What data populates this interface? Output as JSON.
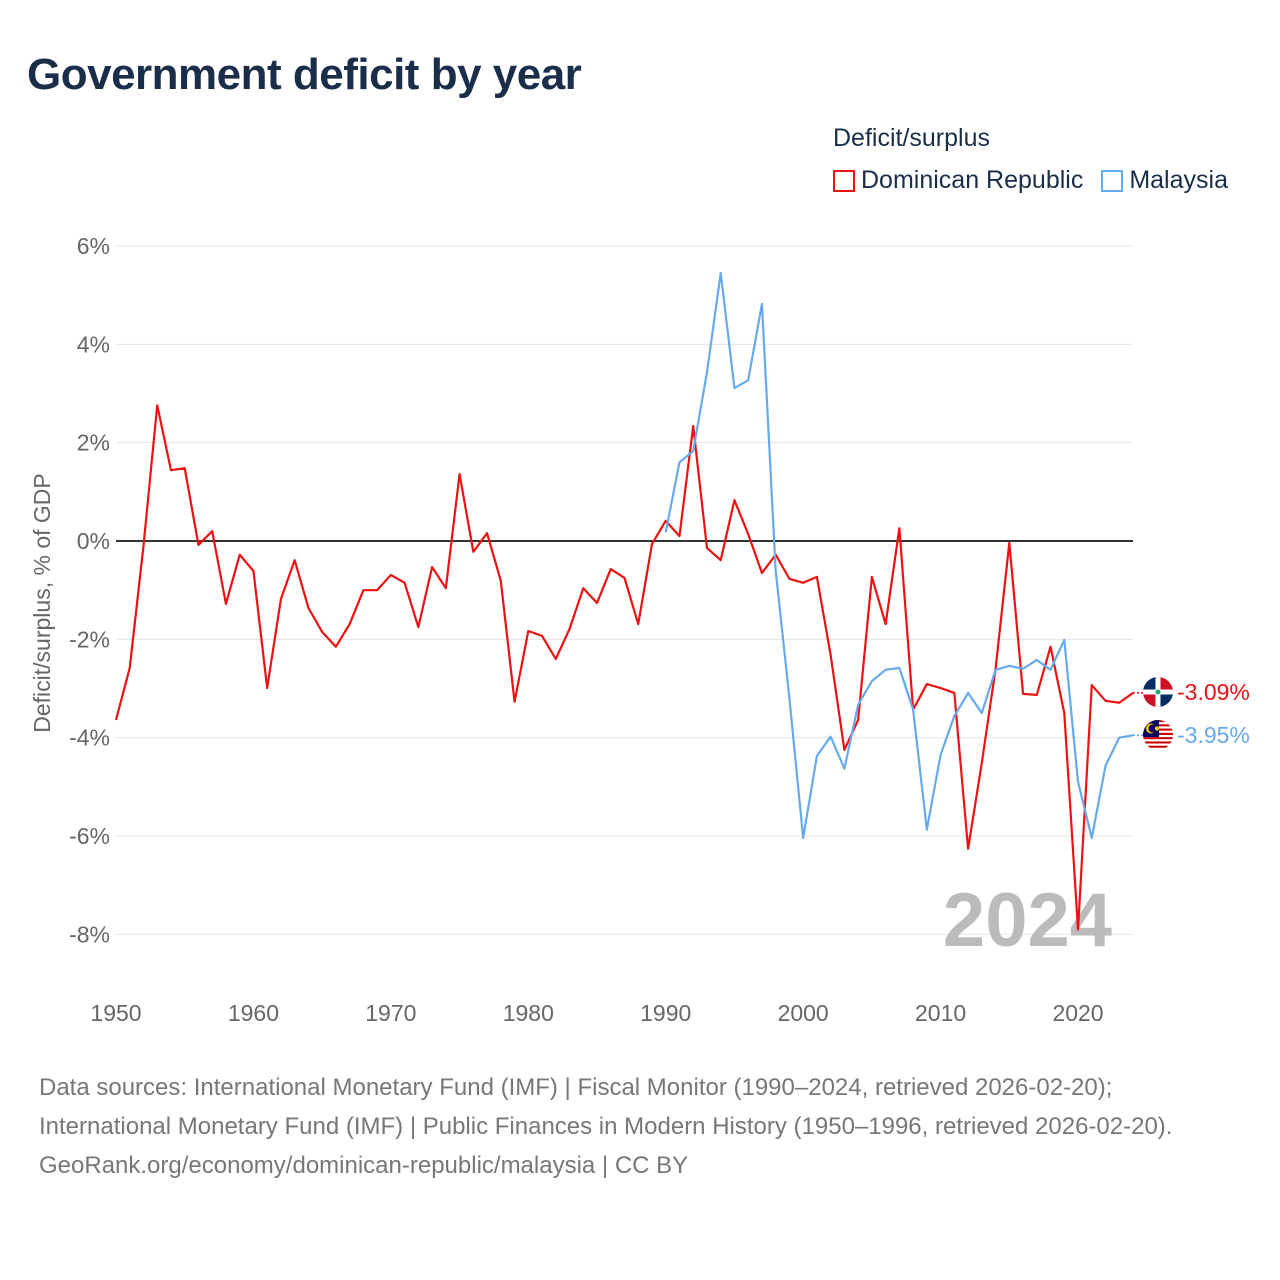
{
  "title": "Government deficit by year",
  "legend": {
    "title": "Deficit/surplus",
    "items": [
      {
        "name": "Dominican Republic",
        "color": "#ee1111"
      },
      {
        "name": "Malaysia",
        "color": "#66aaee"
      }
    ]
  },
  "chart_data": {
    "type": "line",
    "title": "Government deficit by year",
    "xlabel": "",
    "ylabel": "Deficit/surplus, % of GDP",
    "xlim": [
      1950,
      2024
    ],
    "ylim": [
      -8,
      6
    ],
    "x_ticks": [
      "1950",
      "1960",
      "1970",
      "1980",
      "1990",
      "2000",
      "2010",
      "2020"
    ],
    "x_tick_values": [
      1950,
      1960,
      1970,
      1980,
      1990,
      2000,
      2010,
      2020
    ],
    "y_ticks": [
      "6%",
      "4%",
      "2%",
      "0%",
      "-2%",
      "-4%",
      "-6%",
      "-8%"
    ],
    "y_tick_values": [
      6,
      4,
      2,
      0,
      -2,
      -4,
      -6,
      -8
    ],
    "grid": true,
    "year_watermark": "2024",
    "series": [
      {
        "name": "Dominican Republic",
        "color": "#ee1111",
        "end_label": "-3.09%",
        "start_year": 1950,
        "values": [
          -3.64,
          -2.58,
          -0.1,
          2.76,
          1.44,
          1.48,
          -0.08,
          0.2,
          -1.28,
          -0.28,
          -0.61,
          -2.99,
          -1.18,
          -0.39,
          -1.36,
          -1.85,
          -2.15,
          -1.69,
          -1.0,
          -1.0,
          -0.69,
          -0.85,
          -1.75,
          -0.53,
          -0.96,
          1.36,
          -0.22,
          0.16,
          -0.81,
          -3.27,
          -1.83,
          -1.93,
          -2.4,
          -1.79,
          -0.96,
          -1.26,
          -0.57,
          -0.75,
          -1.69,
          -0.06,
          0.41,
          0.1,
          2.34,
          -0.14,
          -0.39,
          0.83,
          0.14,
          -0.65,
          -0.28,
          -0.77,
          -0.85,
          -0.73,
          -2.32,
          -4.25,
          -3.64,
          -0.73,
          -1.69,
          0.26,
          -3.43,
          -2.91,
          -2.99,
          -3.09,
          -6.26,
          -4.51,
          -2.6,
          -0.04,
          -3.11,
          -3.13,
          -2.15,
          -3.5,
          -7.9,
          -2.93,
          -3.25,
          -3.29,
          -3.09
        ]
      },
      {
        "name": "Malaysia",
        "color": "#66aaee",
        "end_label": "-3.95%",
        "start_year": 1990,
        "values": [
          0.18,
          1.6,
          1.83,
          3.43,
          5.45,
          3.11,
          3.27,
          4.82,
          -0.6,
          -3.2,
          -6.04,
          -4.37,
          -3.98,
          -4.63,
          -3.33,
          -2.85,
          -2.62,
          -2.58,
          -3.43,
          -5.87,
          -4.35,
          -3.56,
          -3.09,
          -3.5,
          -2.62,
          -2.54,
          -2.6,
          -2.42,
          -2.62,
          -2.01,
          -4.9,
          -6.04,
          -4.57,
          -4.0,
          -3.95
        ]
      }
    ]
  },
  "source": {
    "line1": "Data sources: International Monetary Fund (IMF) | Fiscal Monitor (1990–2024, retrieved 2026-02-20);",
    "line2": "International Monetary Fund (IMF) | Public Finances in Modern History (1950–1996, retrieved 2026-02-20).",
    "line3": "GeoRank.org/economy/dominican-republic/malaysia | CC BY"
  }
}
